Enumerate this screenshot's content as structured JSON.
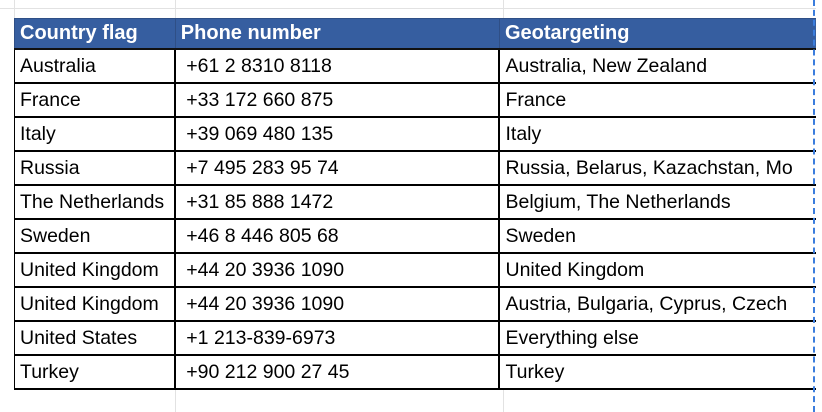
{
  "table": {
    "headers": [
      "Country flag",
      "Phone number",
      "Geotargeting"
    ],
    "rows": [
      {
        "country": "Australia",
        "phone": "+61 2 8310 8118",
        "geo": "Australia, New Zealand"
      },
      {
        "country": "France",
        "phone": "+33 172 660 875",
        "geo": "France"
      },
      {
        "country": "Italy",
        "phone": "+39 069 480 135",
        "geo": "Italy"
      },
      {
        "country": "Russia",
        "phone": "+7 495 283 95 74",
        "geo": "Russia, Belarus, Kazachstan, Mo"
      },
      {
        "country": "The Netherlands",
        "phone": "+31 85 888 1472",
        "geo": "Belgium, The Netherlands"
      },
      {
        "country": "Sweden",
        "phone": "+46 8 446 805 68",
        "geo": "Sweden"
      },
      {
        "country": "United Kingdom",
        "phone": "+44 20 3936 1090",
        "geo": "United Kingdom"
      },
      {
        "country": "United Kingdom",
        "phone": "+44 20 3936 1090",
        "geo": "Austria, Bulgaria, Cyprus, Czech"
      },
      {
        "country": "United States",
        "phone": "+1 213-839-6973",
        "geo": "Everything else"
      },
      {
        "country": "Turkey",
        "phone": "+90 212 900 27 45",
        "geo": "Turkey"
      }
    ]
  },
  "colors": {
    "header_bg": "#365ea0",
    "header_text": "#ffffff",
    "selection": "#3b7ddd"
  }
}
